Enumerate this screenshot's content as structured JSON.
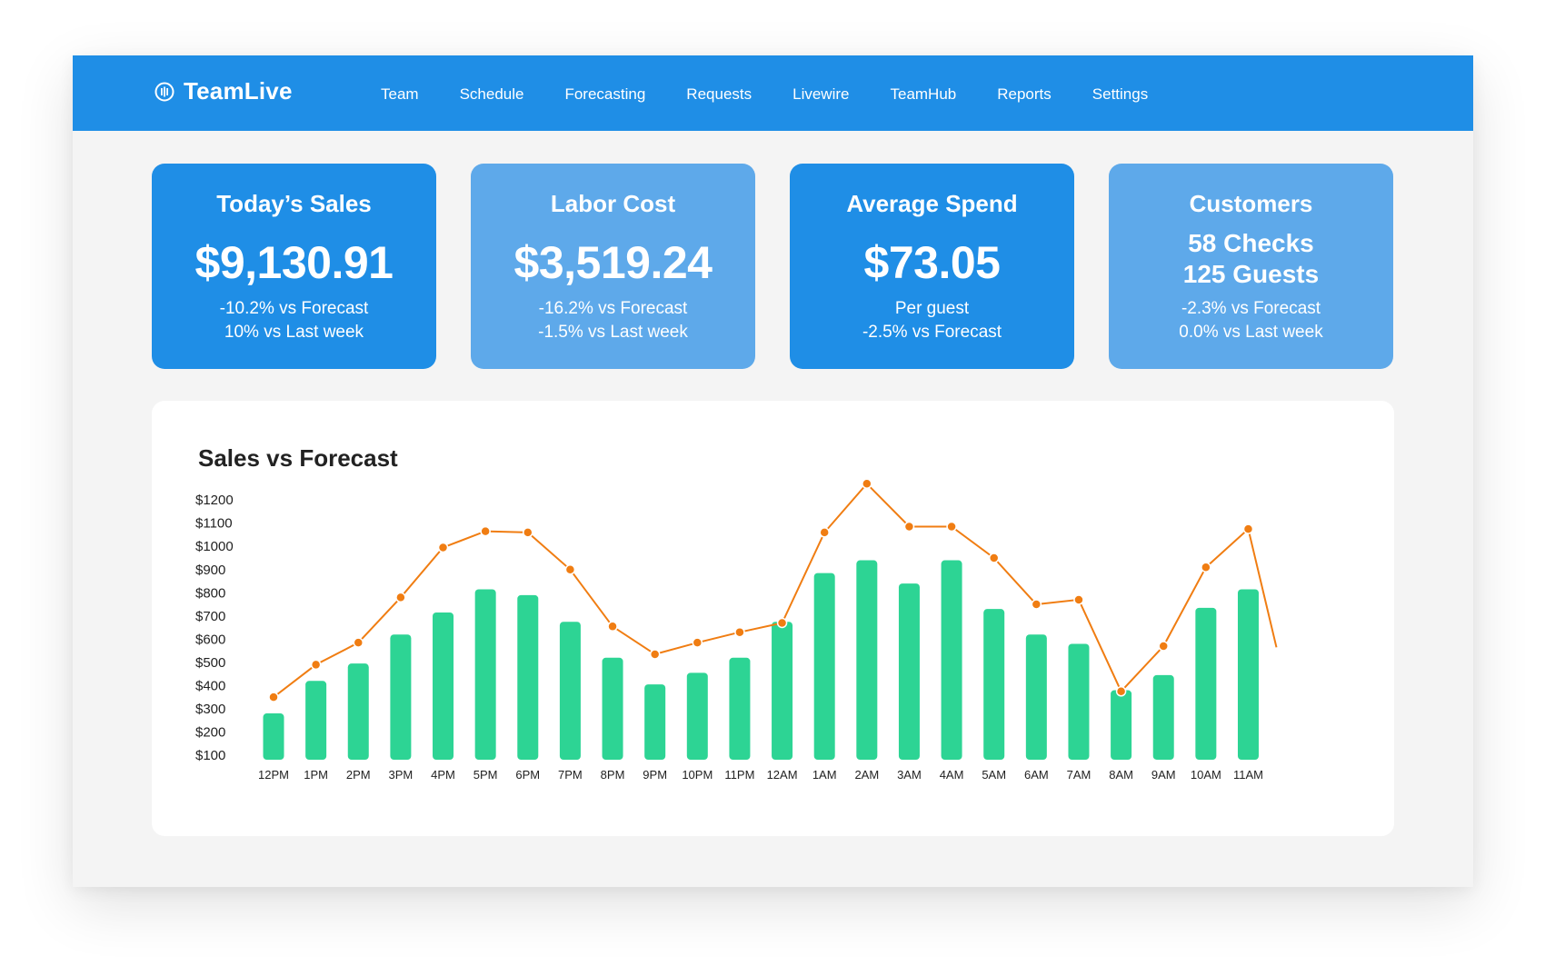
{
  "brand": {
    "name": "TeamLive",
    "icon": "equalizer-circle-icon"
  },
  "nav": [
    "Team",
    "Schedule",
    "Forecasting",
    "Requests",
    "Livewire",
    "TeamHub",
    "Reports",
    "Settings"
  ],
  "kpis": [
    {
      "title": "Today’s Sales",
      "value": "$9,130.91",
      "lines": [
        "-10.2% vs Forecast",
        "10% vs Last week"
      ]
    },
    {
      "title": "Labor Cost",
      "value": "$3,519.24",
      "lines": [
        "-16.2% vs Forecast",
        "-1.5% vs Last week"
      ]
    },
    {
      "title": "Average Spend",
      "value": "$73.05",
      "lines": [
        "Per guest",
        "-2.5% vs Forecast"
      ]
    },
    {
      "title": "Customers",
      "value_lines": [
        "58 Checks",
        "125 Guests"
      ],
      "lines": [
        "-2.3% vs Forecast",
        "0.0% vs Last week"
      ]
    }
  ],
  "colors": {
    "nav_bg": "#1f8ee6",
    "card_dark": "#1f8ee6",
    "card_light": "#5ea9ea",
    "bar": "#2dd494",
    "line": "#f07d12"
  },
  "chart": {
    "title": "Sales vs Forecast"
  },
  "chart_data": {
    "type": "bar",
    "title": "Sales vs Forecast",
    "xlabel": "",
    "ylabel": "",
    "ylim": [
      100,
      1200
    ],
    "yticks": [
      1200,
      1100,
      1000,
      900,
      800,
      700,
      600,
      500,
      400,
      300,
      200,
      100
    ],
    "ytick_labels": [
      "$1200",
      "$1100",
      "$1000",
      "$900",
      "$800",
      "$700",
      "$600",
      "$500",
      "$400",
      "$300",
      "$200",
      "$100"
    ],
    "categories": [
      "12PM",
      "1PM",
      "2PM",
      "3PM",
      "4PM",
      "5PM",
      "6PM",
      "7PM",
      "8PM",
      "9PM",
      "10PM",
      "11PM",
      "12AM",
      "1AM",
      "2AM",
      "3AM",
      "4AM",
      "5AM",
      "6AM",
      "7AM",
      "8AM",
      "9AM",
      "10AM",
      "11AM"
    ],
    "series": [
      {
        "type": "bar",
        "values": [
          280,
          420,
          495,
          620,
          715,
          815,
          790,
          675,
          520,
          405,
          455,
          520,
          675,
          885,
          940,
          840,
          940,
          730,
          620,
          580,
          380,
          445,
          735,
          815
        ]
      },
      {
        "type": "line",
        "values": [
          350,
          490,
          585,
          780,
          995,
          1065,
          1060,
          900,
          655,
          535,
          585,
          630,
          670,
          1060,
          1270,
          1085,
          1085,
          950,
          750,
          770,
          375,
          570,
          910,
          1075
        ],
        "trailing_value": 565
      }
    ],
    "grid": false,
    "legend": "none"
  }
}
